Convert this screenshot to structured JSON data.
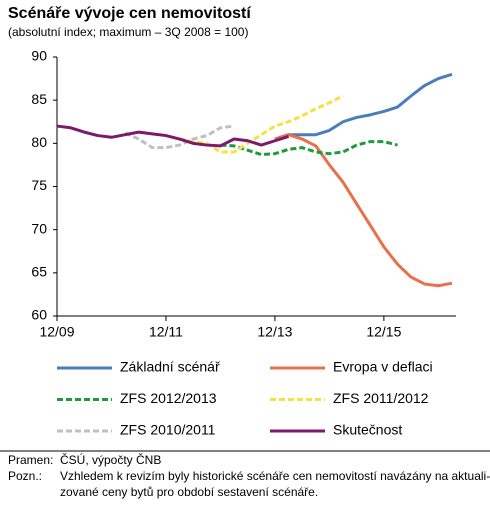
{
  "chart_data": {
    "type": "line",
    "title": "Scénáře vývoje cen nemovitostí",
    "subtitle": "(absolutní index; maximum – 3Q 2008 = 100)",
    "categories": [
      "12/09",
      null,
      null,
      null,
      null,
      null,
      null,
      null,
      "12/11",
      null,
      null,
      null,
      null,
      null,
      null,
      null,
      "12/13",
      null,
      null,
      null,
      null,
      null,
      null,
      null,
      "12/15",
      null,
      null,
      null,
      null,
      null
    ],
    "ylim": [
      60,
      90
    ],
    "yticks": [
      60,
      65,
      70,
      75,
      80,
      85,
      90
    ],
    "grid": false,
    "series": [
      {
        "name": "Základní scénář",
        "color": "#4a7ebb",
        "dashed": false,
        "values": [
          null,
          null,
          null,
          null,
          null,
          null,
          null,
          null,
          null,
          null,
          null,
          null,
          null,
          null,
          null,
          null,
          80.5,
          81,
          81,
          81,
          81.5,
          82.5,
          83,
          83.3,
          83.7,
          84.2,
          85.5,
          86.7,
          87.5,
          88
        ]
      },
      {
        "name": "Evropa v deflaci",
        "color": "#e8704a",
        "dashed": false,
        "values": [
          null,
          null,
          null,
          null,
          null,
          null,
          null,
          null,
          null,
          null,
          null,
          null,
          null,
          null,
          null,
          null,
          80.5,
          81,
          80.5,
          79.7,
          77.5,
          75.5,
          73,
          70.5,
          68,
          66,
          64.5,
          63.7,
          63.5,
          63.8
        ]
      },
      {
        "name": "ZFS 2012/2013",
        "color": "#1e9a3a",
        "dashed": true,
        "values": [
          null,
          null,
          null,
          null,
          null,
          null,
          null,
          null,
          null,
          null,
          null,
          null,
          79.8,
          79.7,
          79.2,
          78.7,
          78.8,
          79.3,
          79.5,
          79,
          78.8,
          79,
          79.8,
          80.2,
          80.2,
          79.8,
          null,
          null,
          null,
          null
        ]
      },
      {
        "name": "ZFS 2011/2012",
        "color": "#f5e142",
        "dashed": true,
        "values": [
          null,
          null,
          null,
          null,
          null,
          null,
          null,
          null,
          null,
          80.5,
          80.2,
          80,
          79,
          79,
          80,
          81,
          82,
          82.5,
          83.2,
          84,
          84.7,
          85.5,
          null,
          null,
          null,
          null,
          null,
          null,
          null,
          null
        ]
      },
      {
        "name": "ZFS 2010/2011",
        "color": "#bfbfbf",
        "dashed": true,
        "values": [
          null,
          null,
          null,
          null,
          null,
          81.2,
          80.5,
          79.5,
          79.5,
          79.8,
          80.5,
          80.9,
          81.8,
          82,
          null,
          null,
          null,
          null,
          null,
          null,
          null,
          null,
          null,
          null,
          null,
          null,
          null,
          null,
          null,
          null
        ]
      },
      {
        "name": "Skutečnost",
        "color": "#7b1a6b",
        "dashed": false,
        "values": [
          82,
          81.8,
          81.3,
          80.9,
          80.7,
          81,
          81.3,
          81.1,
          80.9,
          80.5,
          80,
          79.8,
          79.7,
          80.5,
          80.3,
          79.8,
          80.3,
          80.8,
          null,
          null,
          null,
          null,
          null,
          null,
          null,
          null,
          null,
          null,
          null,
          null
        ]
      }
    ]
  },
  "footer": {
    "source_label": "Pramen:",
    "source": "ČSÚ, výpočty ČNB",
    "note_label": "Pozn.:",
    "note": [
      "Vzhledem k revizím byly historické scénáře cen nemovitostí navázány na aktuali-",
      "zované ceny bytů pro období sestavení scénáře."
    ]
  }
}
